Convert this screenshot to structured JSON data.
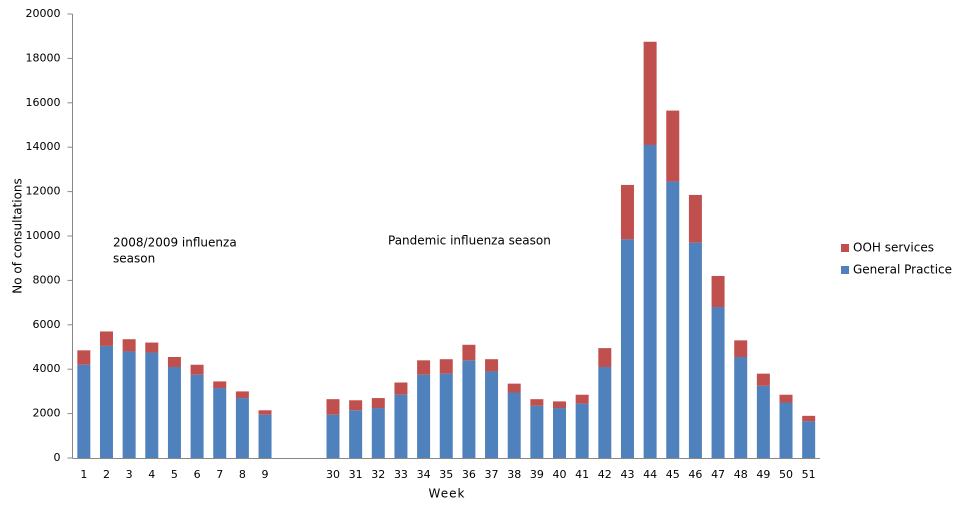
{
  "chart_data": {
    "type": "stacked_bar",
    "y_label": "No of consultations",
    "x_label": "Week",
    "annotations": [
      [
        "2008/2009 influenza",
        "season"
      ],
      [
        "Pandemic influenza season"
      ]
    ],
    "categories": [
      "1",
      "2",
      "3",
      "4",
      "5",
      "6",
      "7",
      "8",
      "9",
      null,
      null,
      "30",
      "31",
      "32",
      "33",
      "34",
      "35",
      "36",
      "37",
      "38",
      "39",
      "40",
      "41",
      "42",
      "43",
      "44",
      "45",
      "46",
      "47",
      "48",
      "49",
      "50",
      "51"
    ],
    "series": [
      {
        "name": "General Practice",
        "color": "#4f81bd",
        "values": [
          4200,
          5050,
          4800,
          4750,
          4100,
          3750,
          3150,
          2700,
          1950,
          null,
          null,
          1950,
          2150,
          2250,
          2850,
          3750,
          3800,
          4400,
          3900,
          2950,
          2350,
          2250,
          2450,
          4100,
          9850,
          14100,
          12450,
          9700,
          6800,
          4550,
          3250,
          2500,
          1650
        ]
      },
      {
        "name": "OOH services",
        "color": "#c0504d",
        "values": [
          650,
          650,
          550,
          450,
          450,
          450,
          300,
          300,
          200,
          null,
          null,
          700,
          450,
          450,
          550,
          650,
          650,
          700,
          550,
          400,
          300,
          300,
          400,
          850,
          2450,
          4650,
          3200,
          2150,
          1400,
          750,
          550,
          350,
          250
        ]
      }
    ],
    "ylim": [
      0,
      20000
    ],
    "yticks": [
      0,
      2000,
      4000,
      6000,
      8000,
      10000,
      12000,
      14000,
      16000,
      18000,
      20000
    ],
    "grid": false,
    "legend": "right"
  }
}
